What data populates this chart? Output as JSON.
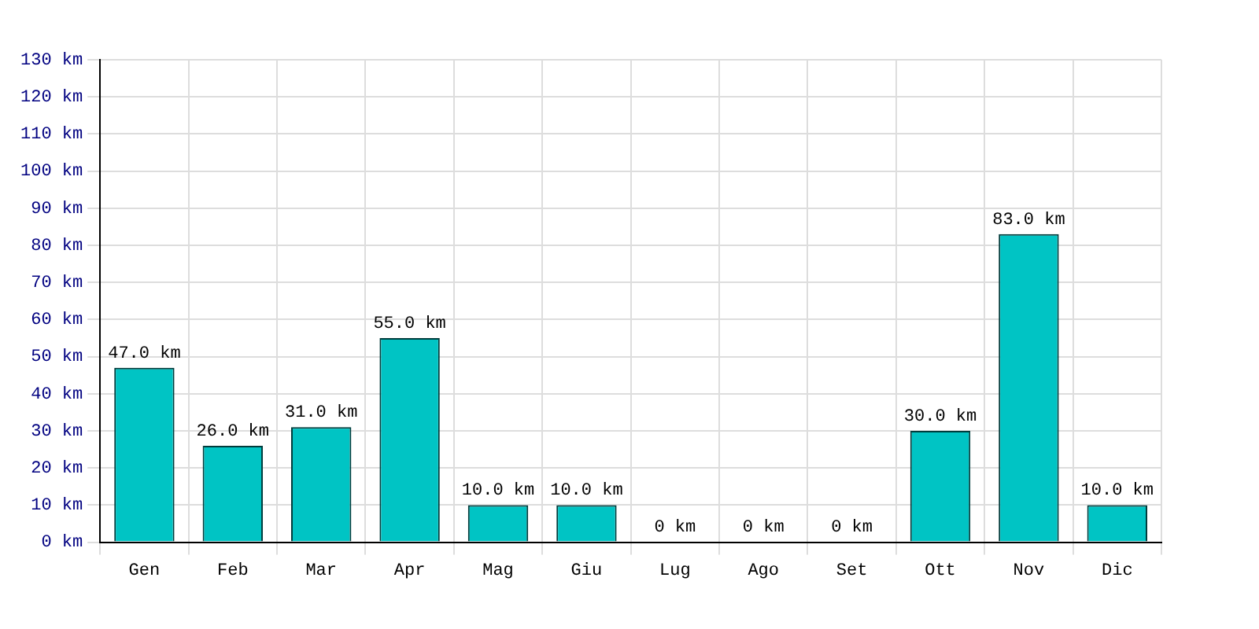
{
  "chart_data": {
    "type": "bar",
    "categories": [
      "Gen",
      "Feb",
      "Mar",
      "Apr",
      "Mag",
      "Giu",
      "Lug",
      "Ago",
      "Set",
      "Ott",
      "Nov",
      "Dic"
    ],
    "values": [
      47,
      26,
      31,
      55,
      10,
      10,
      0,
      0,
      0,
      30,
      83,
      10
    ],
    "value_labels": [
      "47.0 km",
      "26.0 km",
      "31.0 km",
      "55.0 km",
      "10.0 km",
      "10.0 km",
      "0 km",
      "0 km",
      "0 km",
      "30.0 km",
      "83.0 km",
      "10.0 km"
    ],
    "color": "#00c4c4",
    "ylim": [
      0,
      130
    ],
    "yticks": [
      {
        "value": 0,
        "label": "0 km"
      },
      {
        "value": 10,
        "label": "10 km"
      },
      {
        "value": 20,
        "label": "20 km"
      },
      {
        "value": 30,
        "label": "30 km"
      },
      {
        "value": 40,
        "label": "40 km"
      },
      {
        "value": 50,
        "label": "50 km"
      },
      {
        "value": 60,
        "label": "60 km"
      },
      {
        "value": 70,
        "label": "70 km"
      },
      {
        "value": 80,
        "label": "80 km"
      },
      {
        "value": 90,
        "label": "90 km"
      },
      {
        "value": 100,
        "label": "100 km"
      },
      {
        "value": 110,
        "label": "110 km"
      },
      {
        "value": 120,
        "label": "120 km"
      },
      {
        "value": 130,
        "label": "130 km"
      }
    ],
    "grid": true
  }
}
